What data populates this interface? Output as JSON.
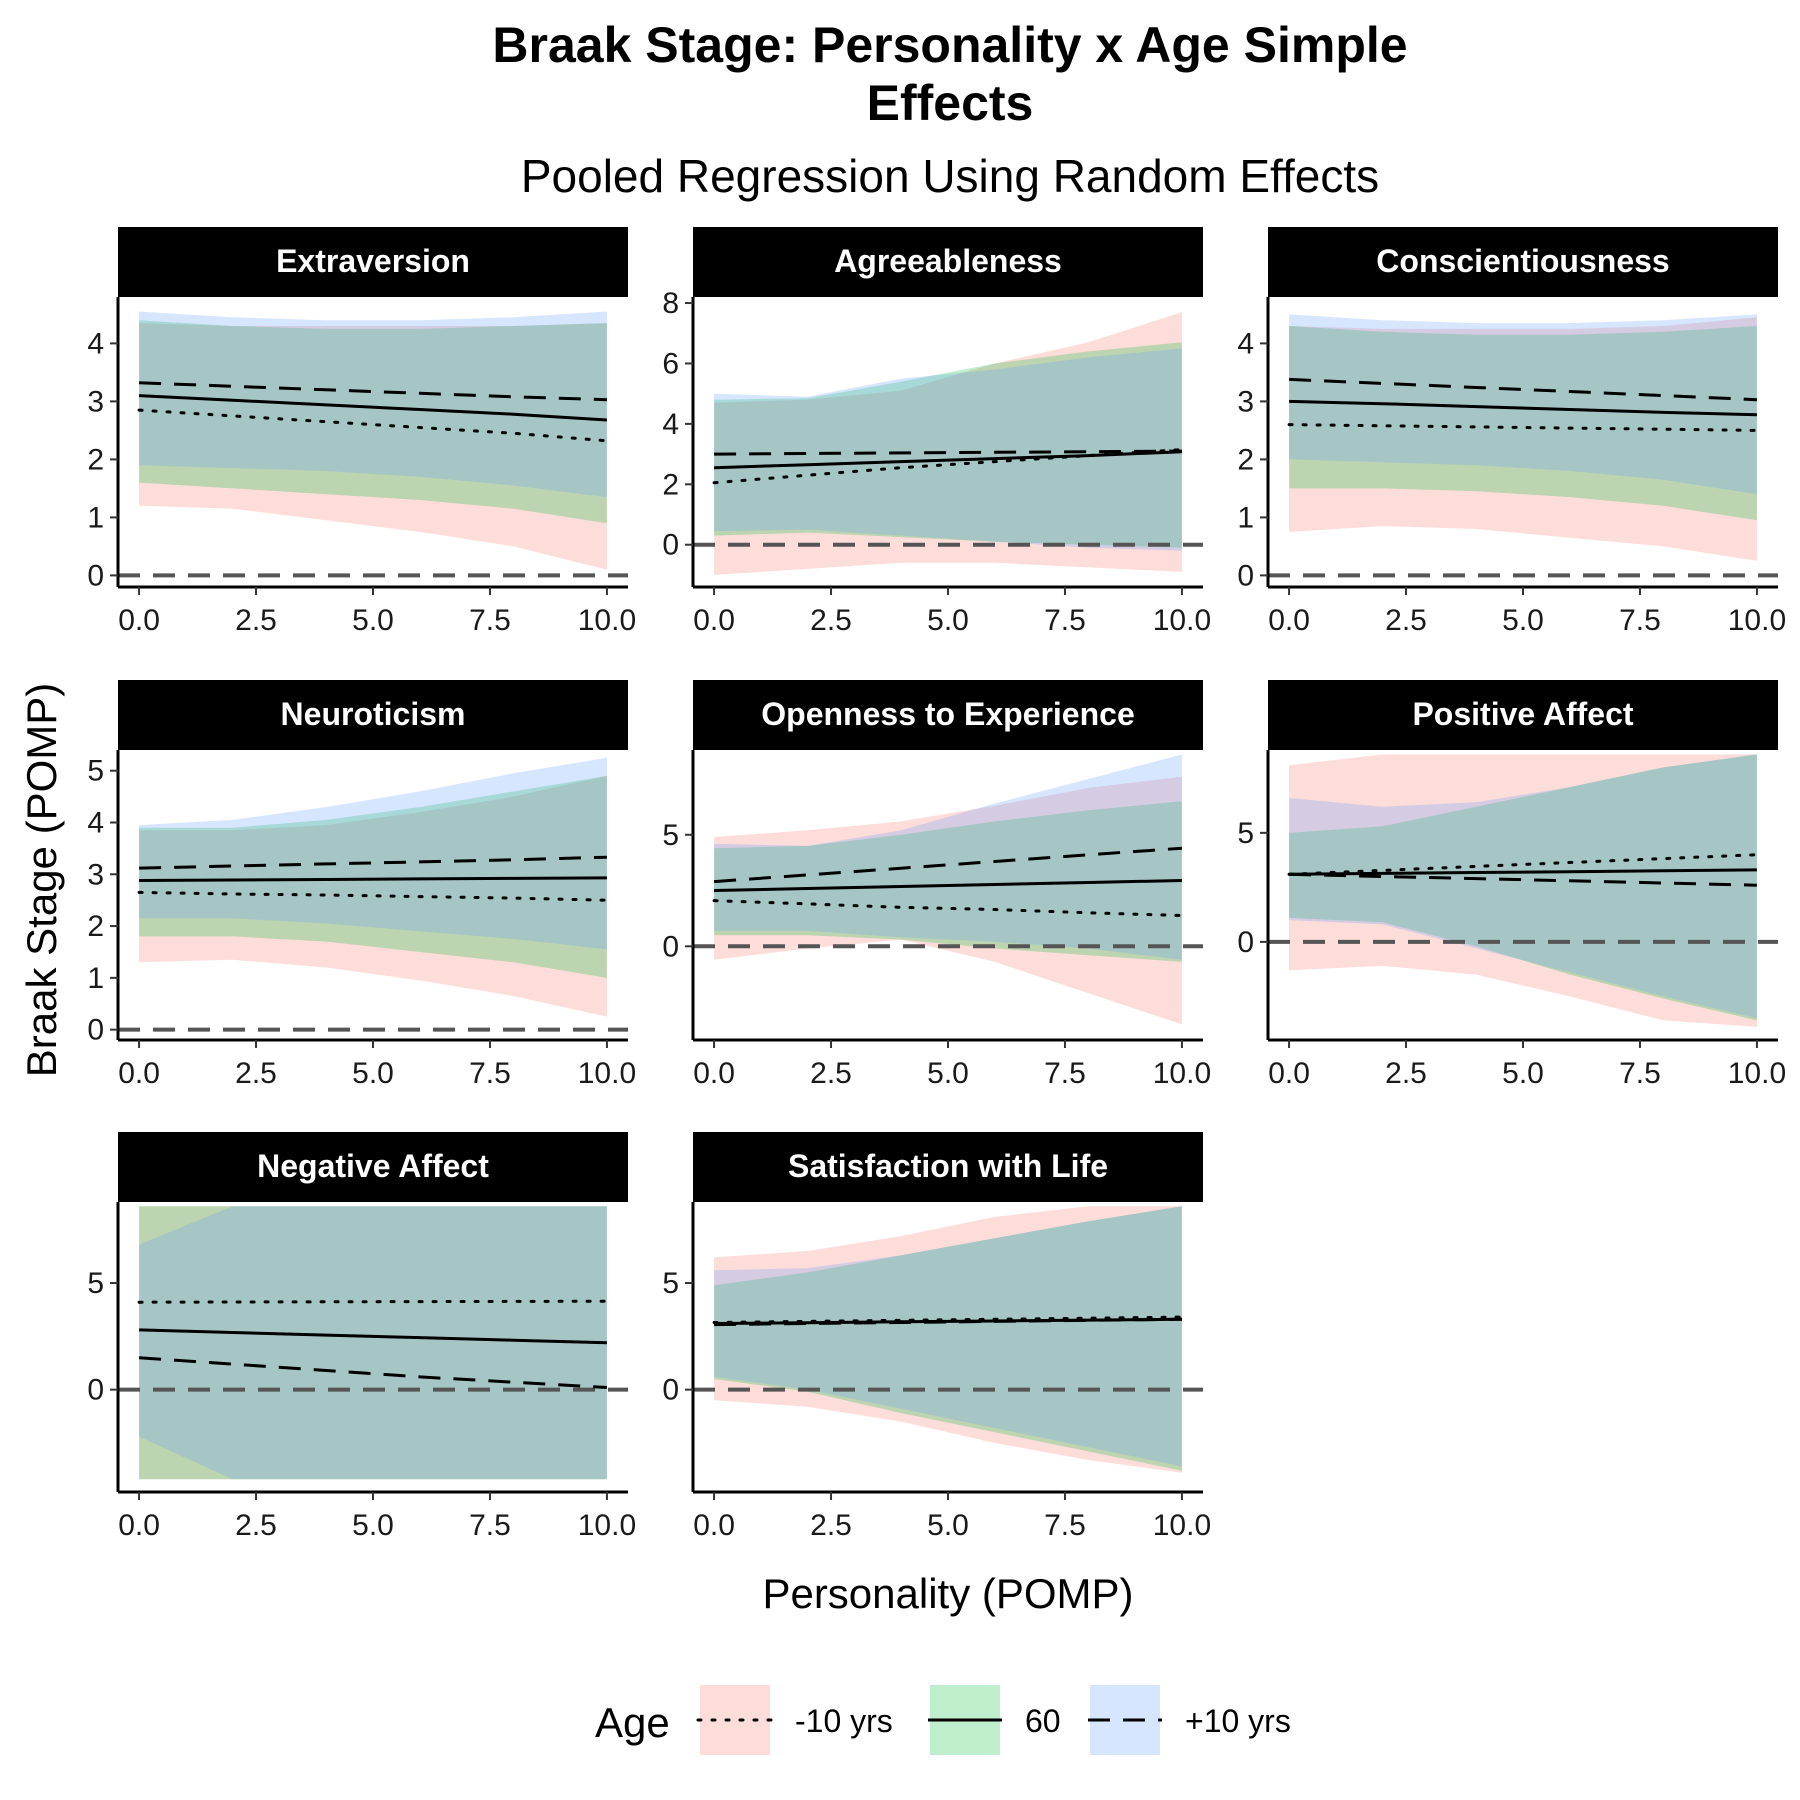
{
  "chart_data": {
    "type": "line",
    "title_lines": [
      "Braak Stage: Personality x Age Simple",
      "Effects"
    ],
    "subtitle": "Pooled Regression Using Random Effects",
    "xlabel": "Personality (POMP)",
    "ylabel": "Braak Stage (POMP)",
    "x_ticks": [
      0,
      2.5,
      5,
      7.5,
      10
    ],
    "x_tick_labels": [
      "0.0",
      "2.5",
      "5.0",
      "7.5",
      "10.0"
    ],
    "xlim": [
      -0.45,
      10.45
    ],
    "legend": {
      "title": "Age",
      "position": "bottom",
      "entries": [
        {
          "label": "-10 yrs",
          "linetype": "dotted",
          "fill": "#F8766D"
        },
        {
          "label": "60",
          "linetype": "solid",
          "fill": "#00BA38"
        },
        {
          "label": "+10 yrs",
          "linetype": "dashed",
          "fill": "#619CFF"
        }
      ]
    },
    "reference_line_y": 0,
    "x": [
      0,
      2,
      4,
      6,
      8,
      10
    ],
    "panels": [
      {
        "name": "Extraversion",
        "ylim": [
          -0.2,
          4.8
        ],
        "y_ticks": [
          0,
          1,
          2,
          3,
          4
        ],
        "series": [
          {
            "name": "-10 yrs",
            "line": [
              2.85,
              2.75,
              2.65,
              2.55,
              2.45,
              2.32
            ],
            "lower": [
              1.2,
              1.15,
              0.95,
              0.75,
              0.5,
              0.1
            ],
            "upper": [
              4.35,
              4.3,
              4.3,
              4.3,
              4.3,
              4.35
            ]
          },
          {
            "name": "60",
            "line": [
              3.1,
              3.02,
              2.94,
              2.86,
              2.78,
              2.68
            ],
            "lower": [
              1.6,
              1.5,
              1.4,
              1.3,
              1.15,
              0.9
            ],
            "upper": [
              4.4,
              4.3,
              4.25,
              4.25,
              4.3,
              4.35
            ]
          },
          {
            "name": "+10 yrs",
            "line": [
              3.32,
              3.26,
              3.2,
              3.14,
              3.08,
              3.03
            ],
            "lower": [
              1.9,
              1.85,
              1.8,
              1.7,
              1.55,
              1.35
            ],
            "upper": [
              4.55,
              4.45,
              4.4,
              4.4,
              4.45,
              4.55
            ]
          }
        ]
      },
      {
        "name": "Agreeableness",
        "ylim": [
          -1.4,
          8.2
        ],
        "y_ticks": [
          0,
          2,
          4,
          6,
          8
        ],
        "series": [
          {
            "name": "-10 yrs",
            "line": [
              2.05,
              2.3,
              2.55,
              2.75,
              2.95,
              3.15
            ],
            "lower": [
              -1.0,
              -0.8,
              -0.6,
              -0.6,
              -0.75,
              -0.9
            ],
            "upper": [
              4.7,
              4.8,
              5.1,
              6.0,
              6.7,
              7.7
            ]
          },
          {
            "name": "60",
            "line": [
              2.55,
              2.65,
              2.75,
              2.85,
              2.95,
              3.08
            ],
            "lower": [
              0.3,
              0.4,
              0.25,
              0.1,
              0.0,
              -0.1
            ],
            "upper": [
              4.8,
              4.85,
              5.4,
              6.0,
              6.4,
              6.7
            ]
          },
          {
            "name": "+10 yrs",
            "line": [
              3.0,
              3.02,
              3.04,
              3.06,
              3.08,
              3.1
            ],
            "lower": [
              0.45,
              0.5,
              0.3,
              0.1,
              -0.1,
              -0.2
            ],
            "upper": [
              5.0,
              4.9,
              5.5,
              5.8,
              6.2,
              6.5
            ]
          }
        ]
      },
      {
        "name": "Conscientiousness",
        "ylim": [
          -0.2,
          4.8
        ],
        "y_ticks": [
          0,
          1,
          2,
          3,
          4
        ],
        "series": [
          {
            "name": "-10 yrs",
            "line": [
              2.6,
              2.58,
              2.56,
              2.54,
              2.52,
              2.5
            ],
            "lower": [
              0.75,
              0.85,
              0.8,
              0.65,
              0.5,
              0.25
            ],
            "upper": [
              4.3,
              4.25,
              4.25,
              4.25,
              4.3,
              4.45
            ]
          },
          {
            "name": "60",
            "line": [
              3.0,
              2.96,
              2.91,
              2.86,
              2.81,
              2.77
            ],
            "lower": [
              1.5,
              1.5,
              1.45,
              1.35,
              1.2,
              0.95
            ],
            "upper": [
              4.3,
              4.2,
              4.15,
              4.15,
              4.2,
              4.3
            ]
          },
          {
            "name": "+10 yrs",
            "line": [
              3.38,
              3.31,
              3.24,
              3.17,
              3.1,
              3.03
            ],
            "lower": [
              2.0,
              1.95,
              1.9,
              1.8,
              1.65,
              1.4
            ],
            "upper": [
              4.5,
              4.4,
              4.35,
              4.35,
              4.4,
              4.5
            ]
          }
        ]
      },
      {
        "name": "Neuroticism",
        "ylim": [
          -0.2,
          5.4
        ],
        "y_ticks": [
          0,
          1,
          2,
          3,
          4,
          5
        ],
        "series": [
          {
            "name": "-10 yrs",
            "line": [
              2.65,
              2.62,
              2.6,
              2.57,
              2.54,
              2.5
            ],
            "lower": [
              1.3,
              1.35,
              1.2,
              0.95,
              0.65,
              0.25
            ],
            "upper": [
              3.85,
              3.85,
              3.95,
              4.2,
              4.5,
              4.9
            ]
          },
          {
            "name": "60",
            "line": [
              2.88,
              2.89,
              2.9,
              2.91,
              2.92,
              2.93
            ],
            "lower": [
              1.8,
              1.8,
              1.7,
              1.5,
              1.3,
              1.0
            ],
            "upper": [
              3.9,
              3.9,
              4.05,
              4.3,
              4.6,
              4.9
            ]
          },
          {
            "name": "+10 yrs",
            "line": [
              3.12,
              3.16,
              3.2,
              3.24,
              3.28,
              3.33
            ],
            "lower": [
              2.15,
              2.15,
              2.05,
              1.9,
              1.75,
              1.55
            ],
            "upper": [
              3.95,
              4.05,
              4.3,
              4.6,
              4.95,
              5.25
            ]
          }
        ]
      },
      {
        "name": "Openness to Experience",
        "ylim": [
          -4.2,
          8.8
        ],
        "y_ticks": [
          0,
          5
        ],
        "series": [
          {
            "name": "-10 yrs",
            "line": [
              2.05,
              1.9,
              1.75,
              1.65,
              1.5,
              1.38
            ],
            "lower": [
              -0.6,
              -0.1,
              0.3,
              -0.7,
              -2.1,
              -3.5
            ],
            "upper": [
              4.9,
              5.2,
              5.6,
              6.3,
              7.1,
              7.6
            ]
          },
          {
            "name": "60",
            "line": [
              2.5,
              2.59,
              2.68,
              2.77,
              2.86,
              2.95
            ],
            "lower": [
              0.5,
              0.5,
              0.3,
              -0.1,
              -0.4,
              -0.7
            ],
            "upper": [
              4.4,
              4.5,
              5.0,
              5.6,
              6.1,
              6.5
            ]
          },
          {
            "name": "+10 yrs",
            "line": [
              2.9,
              3.2,
              3.5,
              3.8,
              4.1,
              4.4
            ],
            "lower": [
              0.7,
              0.7,
              0.4,
              0.2,
              -0.1,
              -0.6
            ],
            "upper": [
              4.6,
              4.5,
              5.2,
              6.4,
              7.5,
              8.6
            ]
          }
        ]
      },
      {
        "name": "Positive Affect",
        "ylim": [
          -4.5,
          8.8
        ],
        "y_ticks": [
          0,
          5
        ],
        "series": [
          {
            "name": "-10 yrs",
            "line": [
              3.1,
              3.28,
              3.46,
              3.64,
              3.82,
              4.0
            ],
            "lower": [
              -1.3,
              -1.1,
              -1.5,
              -2.5,
              -3.6,
              -3.9
            ],
            "upper": [
              8.1,
              8.6,
              8.6,
              8.6,
              8.6,
              8.6
            ]
          },
          {
            "name": "60",
            "line": [
              3.1,
              3.14,
              3.18,
              3.22,
              3.26,
              3.3
            ],
            "lower": [
              1.1,
              0.9,
              -0.2,
              -1.5,
              -2.6,
              -3.6
            ],
            "upper": [
              5.0,
              5.3,
              6.2,
              7.1,
              8.0,
              8.6
            ]
          },
          {
            "name": "+10 yrs",
            "line": [
              3.1,
              3.0,
              2.9,
              2.8,
              2.7,
              2.6
            ],
            "lower": [
              1.0,
              0.8,
              -0.3,
              -1.4,
              -2.5,
              -3.5
            ],
            "upper": [
              6.6,
              6.2,
              6.4,
              7.1,
              8.0,
              8.6
            ]
          }
        ]
      },
      {
        "name": "Negative Affect",
        "ylim": [
          -4.8,
          8.8
        ],
        "y_ticks": [
          0,
          5
        ],
        "series": [
          {
            "name": "-10 yrs",
            "line": [
              4.1,
              4.11,
              4.12,
              4.13,
              4.14,
              4.15
            ],
            "lower": [
              -4.2,
              -4.2,
              -4.2,
              -4.2,
              -4.2,
              -4.2
            ],
            "upper": [
              8.6,
              8.6,
              8.6,
              8.6,
              8.6,
              8.6
            ]
          },
          {
            "name": "60",
            "line": [
              2.8,
              2.68,
              2.56,
              2.44,
              2.32,
              2.2
            ],
            "lower": [
              -4.2,
              -4.2,
              -4.2,
              -4.2,
              -4.2,
              -4.2
            ],
            "upper": [
              8.6,
              8.6,
              8.6,
              8.6,
              8.6,
              8.6
            ]
          },
          {
            "name": "+10 yrs",
            "line": [
              1.5,
              1.2,
              0.9,
              0.6,
              0.35,
              0.1
            ],
            "lower": [
              -2.2,
              -4.2,
              -4.2,
              -4.2,
              -4.2,
              -4.2
            ],
            "upper": [
              6.8,
              8.6,
              8.6,
              8.6,
              8.6,
              8.6
            ]
          }
        ]
      },
      {
        "name": "Satisfaction with Life",
        "ylim": [
          -4.8,
          8.8
        ],
        "y_ticks": [
          0,
          5
        ],
        "series": [
          {
            "name": "-10 yrs",
            "line": [
              3.15,
              3.2,
              3.25,
              3.3,
              3.35,
              3.4
            ],
            "lower": [
              -0.5,
              -0.8,
              -1.5,
              -2.5,
              -3.3,
              -3.9
            ],
            "upper": [
              6.2,
              6.5,
              7.2,
              8.1,
              8.6,
              8.6
            ]
          },
          {
            "name": "60",
            "line": [
              3.1,
              3.14,
              3.18,
              3.22,
              3.26,
              3.3
            ],
            "lower": [
              0.5,
              -0.1,
              -1.1,
              -2.0,
              -2.9,
              -3.8
            ],
            "upper": [
              4.9,
              5.5,
              6.3,
              7.1,
              7.9,
              8.6
            ]
          },
          {
            "name": "+10 yrs",
            "line": [
              3.05,
              3.1,
              3.15,
              3.2,
              3.25,
              3.3
            ],
            "lower": [
              0.6,
              0.0,
              -0.9,
              -1.8,
              -2.7,
              -3.6
            ],
            "upper": [
              5.6,
              5.7,
              6.3,
              7.1,
              7.9,
              8.6
            ]
          }
        ]
      }
    ]
  }
}
